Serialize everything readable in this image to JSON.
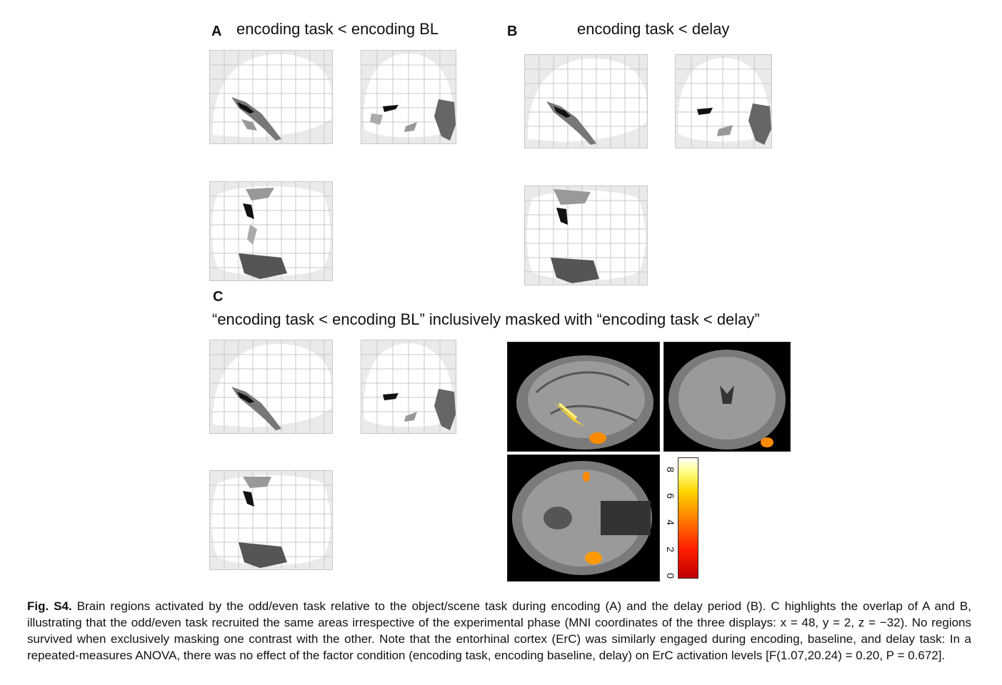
{
  "panels": {
    "a": {
      "letter": "A",
      "title": "encoding task < encoding BL"
    },
    "b": {
      "letter": "B",
      "title": "encoding task < delay"
    },
    "c": {
      "letter": "C",
      "title": "“encoding task < encoding BL” inclusively masked with “encoding task < delay”"
    }
  },
  "colorbar": {
    "ticks": [
      "8",
      "6",
      "4",
      "2",
      "0"
    ],
    "colors": [
      "#c00000",
      "#ff2000",
      "#ff8000",
      "#ffd400",
      "#ffffff"
    ]
  },
  "caption": {
    "label": "Fig. S4.",
    "text": "Brain regions activated by the odd/even task relative to the object/scene task during encoding (A) and the delay period (B). C highlights the overlap of A and B, illustrating that the odd/even task recruited the same areas irrespective of the experimental phase (MNI coordinates of the three displays: x = 48, y = 2, z = −32). No regions survived when exclusively masking one contrast with the other. Note that the entorhinal cortex (ErC) was similarly engaged during encoding, baseline, and delay task: In a repeated-measures ANOVA, there was no effect of the factor condition (encoding task, encoding baseline, delay) on ErC activation levels [F(1.07,20.24) = 0.20, P = 0.672]."
  }
}
